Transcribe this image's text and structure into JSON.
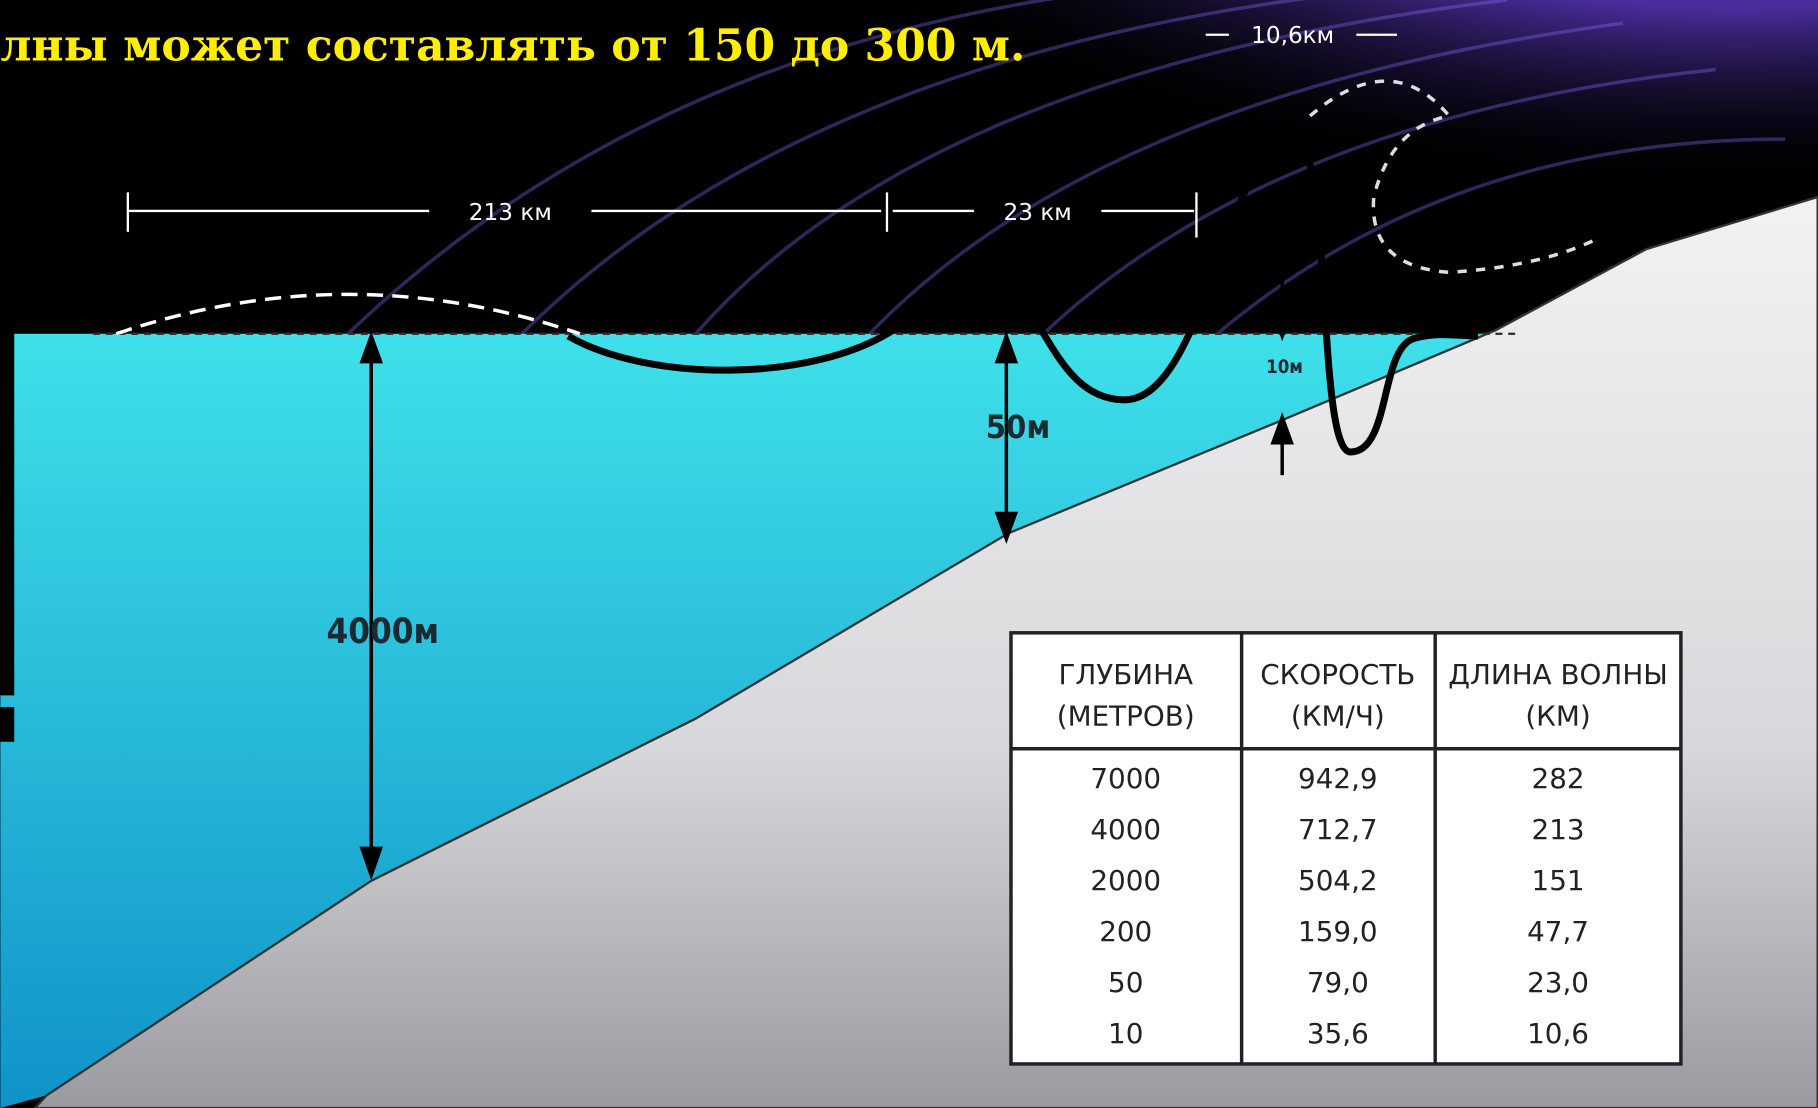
{
  "header": {
    "title": "лны может составлять от 150 до 300 м."
  },
  "labels": {
    "crest_width": "10,6км",
    "wavelength_deep": "213 км",
    "wavelength_shelf": "23 км",
    "height_shore": "10м",
    "depth_shelf": "50м",
    "depth_ocean": "4000м"
  },
  "table": {
    "columns": [
      [
        "ГЛУБИНА",
        "(МЕТРОВ)"
      ],
      [
        "СКОРОСТЬ",
        "(КМ/Ч)"
      ],
      [
        "ДЛИНА ВОЛНЫ",
        "(КМ)"
      ]
    ],
    "rows": [
      [
        "7000",
        "942,9",
        "282"
      ],
      [
        "4000",
        "712,7",
        "213"
      ],
      [
        "2000",
        "504,2",
        "151"
      ],
      [
        "200",
        "159,0",
        "47,7"
      ],
      [
        "50",
        "79,0",
        "23,0"
      ],
      [
        "10",
        "35,6",
        "10,6"
      ]
    ]
  }
}
